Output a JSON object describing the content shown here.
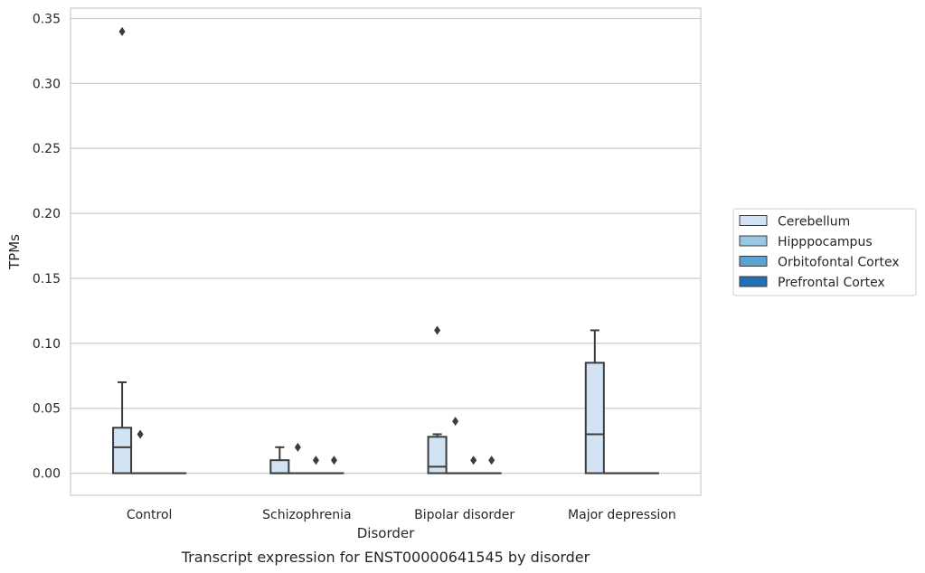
{
  "chart_data": {
    "type": "boxplot",
    "caption": "Transcript expression for ENST00000641545 by disorder",
    "xlabel": "Disorder",
    "ylabel": "TPMs",
    "ylim": [
      -0.017,
      0.358
    ],
    "yticks": [
      0.0,
      0.05,
      0.1,
      0.15,
      0.2,
      0.25,
      0.3,
      0.35
    ],
    "ytick_labels": [
      "0.00",
      "0.05",
      "0.10",
      "0.15",
      "0.20",
      "0.25",
      "0.30",
      "0.35"
    ],
    "grid": "horizontal",
    "legend_position": "right",
    "categories": [
      "Control",
      "Schizophrenia",
      "Bipolar disorder",
      "Major depression"
    ],
    "series": [
      {
        "name": "Cerebellum",
        "color": "#d2e3f3",
        "boxes": [
          {
            "q1": 0.0,
            "median": 0.02,
            "q3": 0.035,
            "whisker_low": 0.0,
            "whisker_high": 0.07,
            "outliers": [
              0.34
            ]
          },
          {
            "q1": 0.0,
            "median": 0.0,
            "q3": 0.01,
            "whisker_low": 0.0,
            "whisker_high": 0.02,
            "outliers": []
          },
          {
            "q1": 0.0,
            "median": 0.005,
            "q3": 0.028,
            "whisker_low": 0.0,
            "whisker_high": 0.03,
            "outliers": [
              0.11
            ]
          },
          {
            "q1": 0.0,
            "median": 0.03,
            "q3": 0.085,
            "whisker_low": 0.0,
            "whisker_high": 0.11,
            "outliers": []
          }
        ]
      },
      {
        "name": "Hipppocampus",
        "color": "#9ac8e0",
        "boxes": [
          {
            "q1": 0.0,
            "median": 0.0,
            "q3": 0.0,
            "whisker_low": 0.0,
            "whisker_high": 0.0,
            "outliers": [
              0.03
            ]
          },
          {
            "q1": 0.0,
            "median": 0.0,
            "q3": 0.0,
            "whisker_low": 0.0,
            "whisker_high": 0.0,
            "outliers": [
              0.02
            ]
          },
          {
            "q1": 0.0,
            "median": 0.0,
            "q3": 0.0,
            "whisker_low": 0.0,
            "whisker_high": 0.0,
            "outliers": [
              0.04
            ]
          },
          {
            "q1": 0.0,
            "median": 0.0,
            "q3": 0.0,
            "whisker_low": 0.0,
            "whisker_high": 0.0,
            "outliers": []
          }
        ]
      },
      {
        "name": "Orbitofontal Cortex",
        "color": "#5ba3cf",
        "boxes": [
          {
            "q1": 0.0,
            "median": 0.0,
            "q3": 0.0,
            "whisker_low": 0.0,
            "whisker_high": 0.0,
            "outliers": []
          },
          {
            "q1": 0.0,
            "median": 0.0,
            "q3": 0.0,
            "whisker_low": 0.0,
            "whisker_high": 0.0,
            "outliers": [
              0.01
            ]
          },
          {
            "q1": 0.0,
            "median": 0.0,
            "q3": 0.0,
            "whisker_low": 0.0,
            "whisker_high": 0.0,
            "outliers": [
              0.01
            ]
          },
          {
            "q1": 0.0,
            "median": 0.0,
            "q3": 0.0,
            "whisker_low": 0.0,
            "whisker_high": 0.0,
            "outliers": []
          }
        ]
      },
      {
        "name": "Prefrontal Cortex",
        "color": "#2271b5",
        "boxes": [
          {
            "q1": 0.0,
            "median": 0.0,
            "q3": 0.0,
            "whisker_low": 0.0,
            "whisker_high": 0.0,
            "outliers": []
          },
          {
            "q1": 0.0,
            "median": 0.0,
            "q3": 0.0,
            "whisker_low": 0.0,
            "whisker_high": 0.0,
            "outliers": [
              0.01
            ]
          },
          {
            "q1": 0.0,
            "median": 0.0,
            "q3": 0.0,
            "whisker_low": 0.0,
            "whisker_high": 0.0,
            "outliers": [
              0.01
            ]
          },
          {
            "q1": 0.0,
            "median": 0.0,
            "q3": 0.0,
            "whisker_low": 0.0,
            "whisker_high": 0.0,
            "outliers": []
          }
        ]
      }
    ]
  }
}
